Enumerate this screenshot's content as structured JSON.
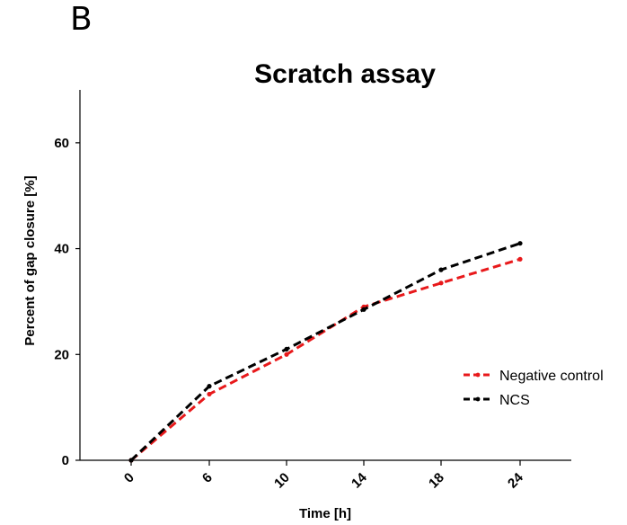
{
  "panel_label": "B",
  "chart_data": {
    "type": "line",
    "title": "Scratch assay",
    "xlabel": "Time [h]",
    "ylabel": "Percent of gap closure [%]",
    "x": [
      0,
      6,
      10,
      14,
      18,
      24
    ],
    "x_tick_labels": [
      "0",
      "6",
      "10",
      "14",
      "18",
      "24"
    ],
    "ylim": [
      0,
      70
    ],
    "y_ticks": [
      0,
      20,
      40,
      60
    ],
    "series": [
      {
        "name": "Negative control",
        "color": "#e8191b",
        "values": [
          0,
          12.5,
          20,
          29,
          33.5,
          38
        ]
      },
      {
        "name": "NCS",
        "color": "#000000",
        "values": [
          0,
          14,
          21,
          28.5,
          36,
          41
        ]
      }
    ],
    "legend_position": "right",
    "grid": false
  }
}
